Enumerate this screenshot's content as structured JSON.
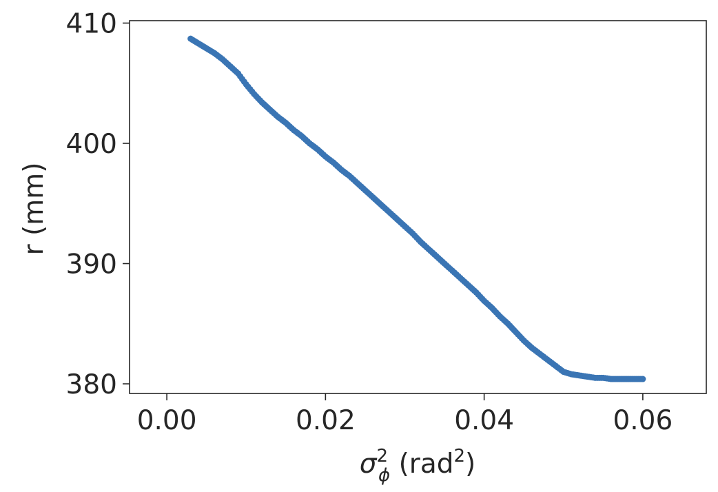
{
  "chart_data": {
    "type": "scatter",
    "xlabel": "σ_ϕ² (rad²)",
    "xlabel_parts": {
      "symbol": "σ",
      "superscript": "2",
      "subscript": "ϕ",
      "unit_open": " (rad",
      "unit_superscript": "2",
      "unit_close": ")"
    },
    "ylabel": "r (mm)",
    "xlim": [
      -0.0047,
      0.068
    ],
    "ylim": [
      379.2,
      410.2
    ],
    "x_ticks": [
      0.0,
      0.02,
      0.04,
      0.06
    ],
    "x_tick_labels": [
      "0.00",
      "0.02",
      "0.04",
      "0.06"
    ],
    "y_ticks": [
      380,
      390,
      400,
      410
    ],
    "y_tick_labels": [
      "380",
      "390",
      "400",
      "410"
    ],
    "grid": false,
    "legend": "none",
    "series": [
      {
        "color": "#3a75b4",
        "x": [
          0.003,
          0.004,
          0.005,
          0.006,
          0.007,
          0.008,
          0.009,
          0.01,
          0.011,
          0.012,
          0.013,
          0.014,
          0.015,
          0.016,
          0.017,
          0.018,
          0.019,
          0.02,
          0.021,
          0.022,
          0.023,
          0.024,
          0.025,
          0.026,
          0.027,
          0.028,
          0.029,
          0.03,
          0.031,
          0.032,
          0.033,
          0.034,
          0.035,
          0.036,
          0.037,
          0.038,
          0.039,
          0.04,
          0.041,
          0.042,
          0.043,
          0.044,
          0.045,
          0.046,
          0.047,
          0.048,
          0.049,
          0.05,
          0.051,
          0.052,
          0.053,
          0.054,
          0.055,
          0.056,
          0.057,
          0.058,
          0.059,
          0.06
        ],
        "y": [
          408.7,
          408.3,
          407.9,
          407.5,
          407.0,
          406.4,
          405.8,
          404.9,
          404.1,
          403.4,
          402.8,
          402.2,
          401.7,
          401.1,
          400.6,
          400.0,
          399.5,
          398.9,
          398.4,
          397.8,
          397.3,
          396.7,
          396.1,
          395.5,
          394.9,
          394.3,
          393.7,
          393.1,
          392.5,
          391.8,
          391.2,
          390.6,
          390.0,
          389.4,
          388.8,
          388.2,
          387.6,
          386.9,
          386.3,
          385.6,
          385.0,
          384.3,
          383.6,
          383.0,
          382.5,
          382.0,
          381.5,
          381.0,
          380.8,
          380.7,
          380.6,
          380.5,
          380.5,
          380.4,
          380.4,
          380.4,
          380.4,
          380.4
        ]
      }
    ]
  }
}
